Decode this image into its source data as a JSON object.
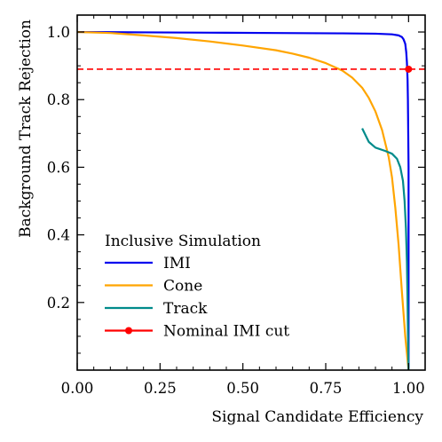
{
  "chart_data": {
    "type": "line",
    "xlabel": "Signal Candidate Efficiency",
    "ylabel": "Background Track Rejection",
    "xlim": [
      0.0,
      1.05
    ],
    "ylim": [
      0.0,
      1.05
    ],
    "x_ticks": [
      {
        "value": 0.0,
        "label": "0.00"
      },
      {
        "value": 0.25,
        "label": "0.25"
      },
      {
        "value": 0.5,
        "label": "0.50"
      },
      {
        "value": 0.75,
        "label": "0.75"
      },
      {
        "value": 1.0,
        "label": "1.00"
      }
    ],
    "y_ticks": [
      {
        "value": 0.2,
        "label": "0.2"
      },
      {
        "value": 0.4,
        "label": "0.4"
      },
      {
        "value": 0.6,
        "label": "0.6"
      },
      {
        "value": 0.8,
        "label": "0.8"
      },
      {
        "value": 1.0,
        "label": "1.0"
      }
    ],
    "grid": false,
    "legend": {
      "title": "Inclusive Simulation",
      "placement": "lower-left"
    },
    "series": [
      {
        "name": "IMI",
        "color": "#0000ee",
        "style": "solid",
        "x": [
          0.0,
          0.2,
          0.4,
          0.6,
          0.8,
          0.9,
          0.95,
          0.97,
          0.98,
          0.985,
          0.99,
          0.993,
          0.995,
          0.997,
          0.998,
          0.999,
          1.0,
          1.0,
          1.0,
          1.0,
          1.0
        ],
        "y": [
          1.0,
          0.999,
          0.998,
          0.997,
          0.996,
          0.995,
          0.993,
          0.99,
          0.985,
          0.978,
          0.965,
          0.94,
          0.91,
          0.86,
          0.8,
          0.7,
          0.6,
          0.4,
          0.2,
          0.05,
          0.0
        ]
      },
      {
        "name": "Cone",
        "color": "#ffa500",
        "style": "solid",
        "x": [
          0.0,
          0.1,
          0.2,
          0.3,
          0.4,
          0.5,
          0.6,
          0.65,
          0.7,
          0.75,
          0.8,
          0.83,
          0.86,
          0.88,
          0.9,
          0.92,
          0.94,
          0.95,
          0.96,
          0.97,
          0.98,
          0.99,
          1.0
        ],
        "y": [
          1.0,
          0.997,
          0.99,
          0.982,
          0.972,
          0.96,
          0.946,
          0.936,
          0.924,
          0.908,
          0.886,
          0.865,
          0.835,
          0.805,
          0.765,
          0.71,
          0.63,
          0.57,
          0.48,
          0.37,
          0.23,
          0.1,
          0.0
        ]
      },
      {
        "name": "Track",
        "color": "#008b8b",
        "style": "solid",
        "x": [
          0.86,
          0.87,
          0.88,
          0.9,
          0.93,
          0.95,
          0.965,
          0.975,
          0.983,
          0.988,
          0.992,
          0.995,
          0.997,
          0.998,
          0.999,
          1.0
        ],
        "y": [
          0.715,
          0.695,
          0.675,
          0.658,
          0.648,
          0.64,
          0.625,
          0.6,
          0.56,
          0.5,
          0.42,
          0.32,
          0.2,
          0.12,
          0.05,
          0.0
        ]
      },
      {
        "name": "Nominal IMI cut",
        "color": "#ff0000",
        "style": "dashed",
        "x": [
          0.0,
          1.05
        ],
        "y": [
          0.89,
          0.89
        ],
        "marker": {
          "x": 1.0,
          "y": 0.89
        }
      }
    ]
  }
}
